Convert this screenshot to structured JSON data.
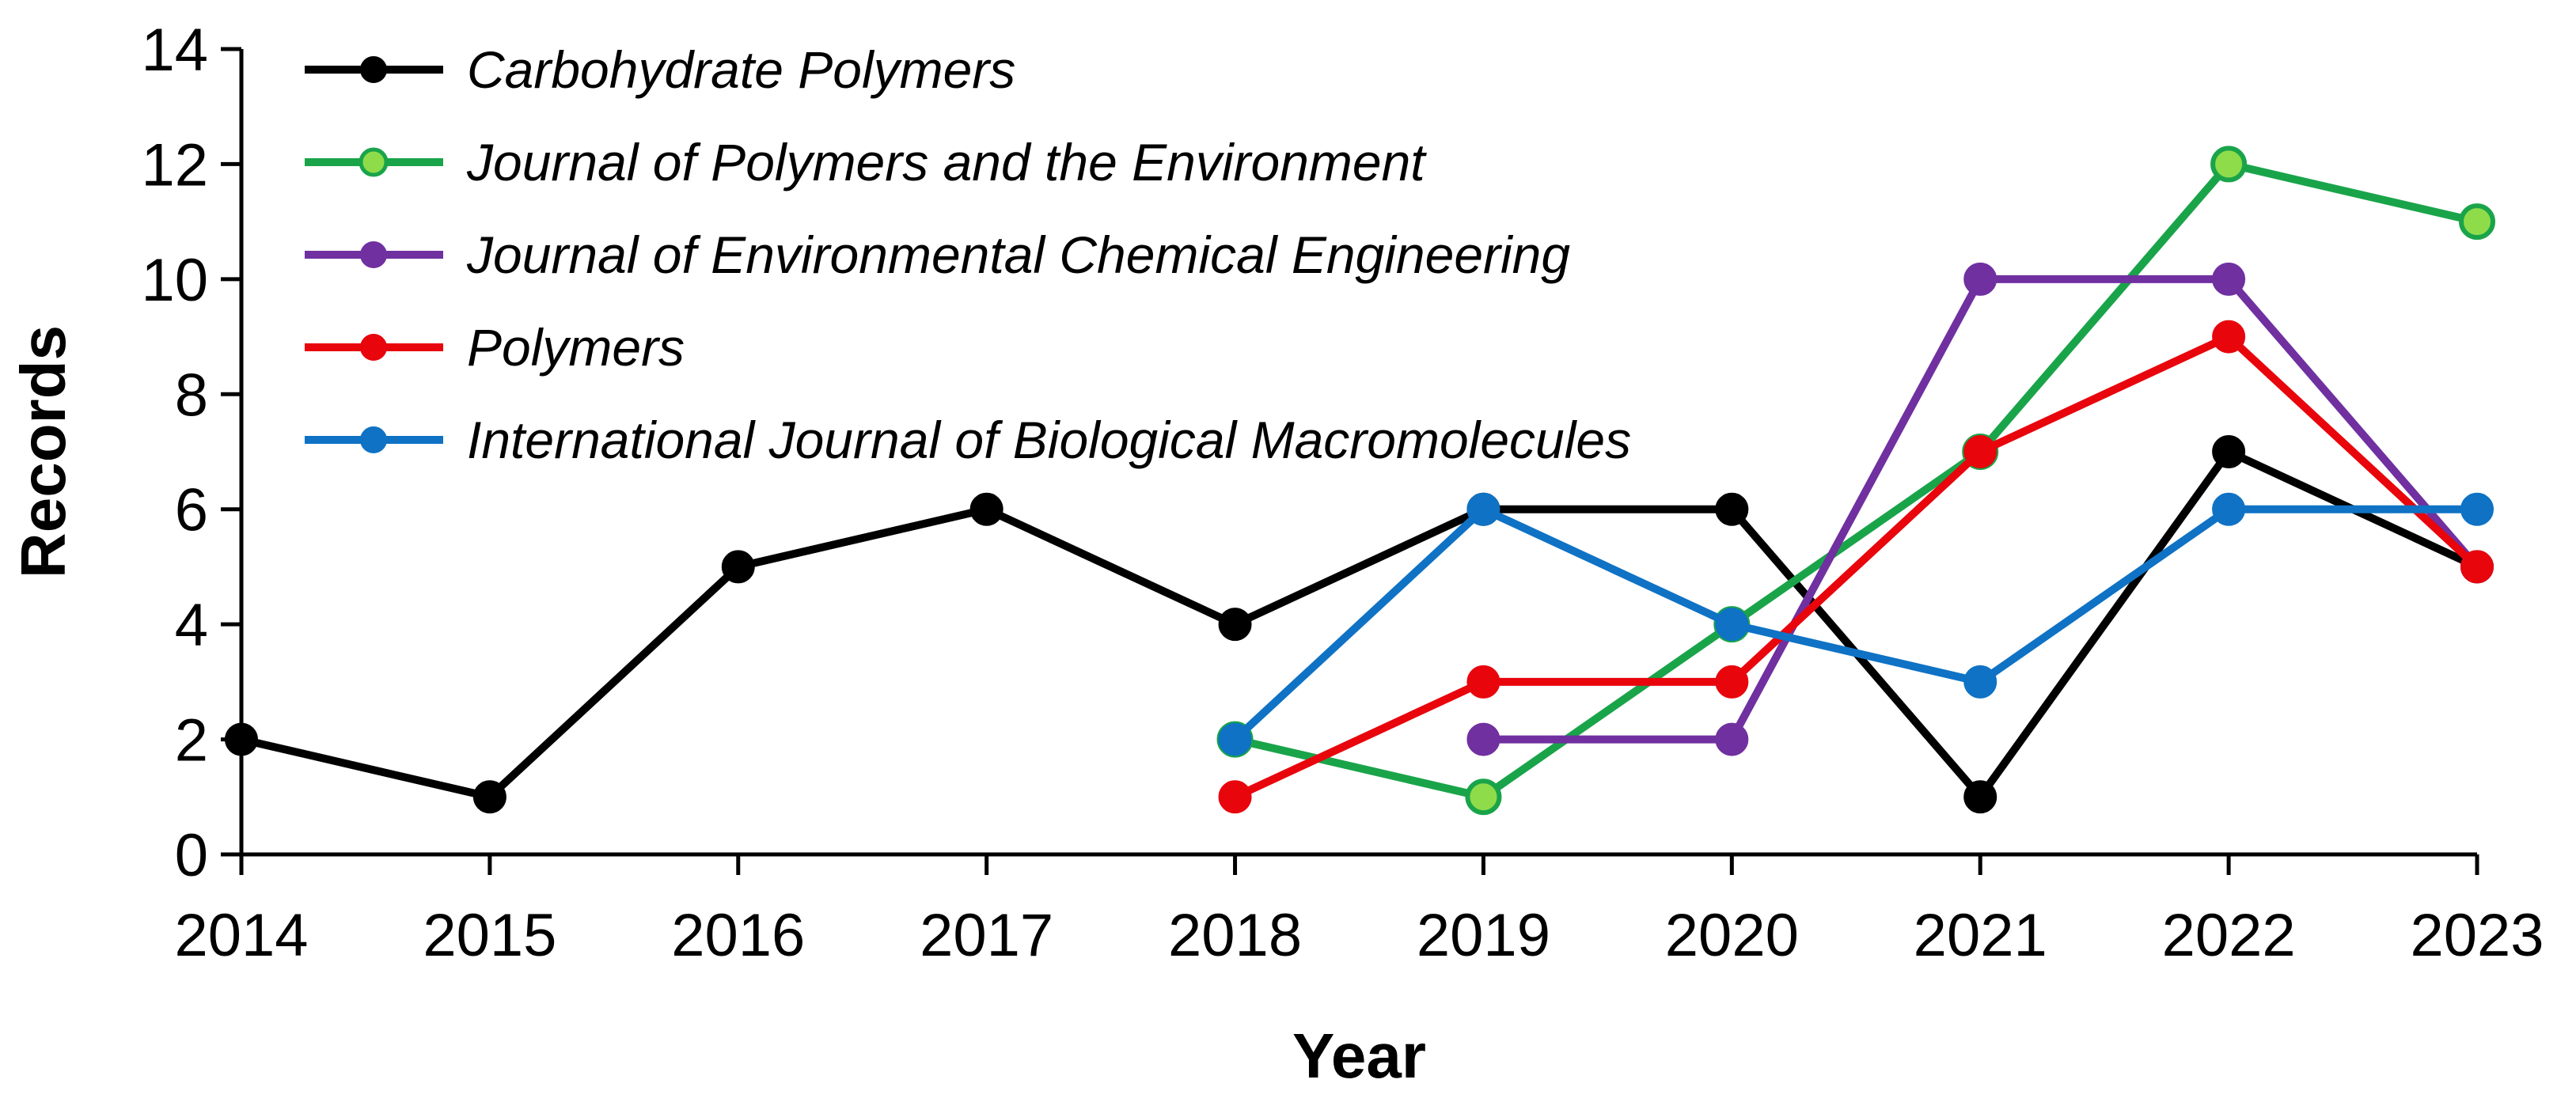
{
  "chart_data": {
    "type": "line",
    "xlabel": "Year",
    "ylabel": "Records",
    "x": [
      "2014",
      "2015",
      "2016",
      "2017",
      "2018",
      "2019",
      "2020",
      "2021",
      "2022",
      "2023"
    ],
    "ylim": [
      0,
      14
    ],
    "yticks": [
      "0",
      "2",
      "4",
      "6",
      "8",
      "10",
      "12",
      "14"
    ],
    "grid": false,
    "legend_position": "top-left",
    "series": [
      {
        "name": "Carbohydrate Polymers",
        "color": "#000000",
        "marker_fill": "#000000",
        "values": [
          2,
          1,
          5,
          6,
          4,
          6,
          6,
          1,
          7,
          5
        ]
      },
      {
        "name": "Journal of Polymers and the Environment",
        "color": "#1aa44a",
        "marker_fill": "#8fdc4a",
        "values": [
          null,
          null,
          null,
          null,
          2,
          1,
          4,
          7,
          12,
          11
        ]
      },
      {
        "name": "Journal of Environmental Chemical Engineering",
        "color": "#7030a0",
        "marker_fill": "#7030a0",
        "values": [
          null,
          null,
          null,
          null,
          null,
          2,
          2,
          10,
          10,
          5
        ]
      },
      {
        "name": "Polymers",
        "color": "#e8050c",
        "marker_fill": "#e8050c",
        "values": [
          null,
          null,
          null,
          null,
          1,
          3,
          3,
          7,
          9,
          5
        ]
      },
      {
        "name": "International Journal of Biological Macromolecules",
        "color": "#0f72c4",
        "marker_fill": "#0f72c4",
        "values": [
          null,
          null,
          null,
          null,
          2,
          6,
          4,
          3,
          6,
          6
        ]
      }
    ]
  }
}
